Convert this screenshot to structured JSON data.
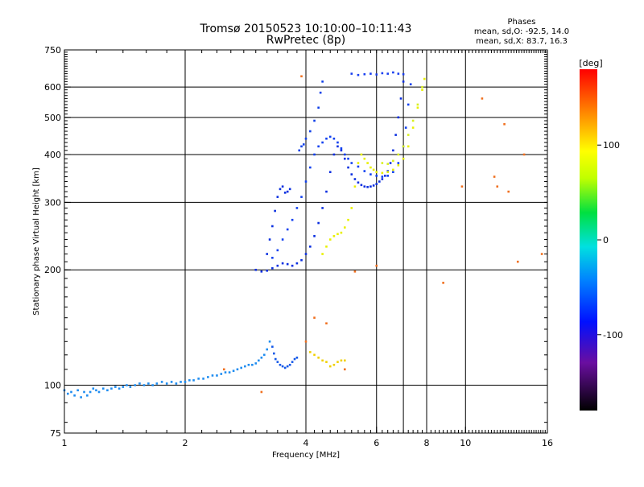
{
  "chart_data": {
    "type": "scatter",
    "title": "Tromsø 20150523 10:10:00–10:11:43",
    "subtitle": "RwPretec (8p)",
    "phase_box": {
      "heading": "Phases",
      "line_o": "mean, sd,O: -92.5, 14.0",
      "line_x": "mean, sd,X: 83.7, 16.3"
    },
    "xlabel": "Frequency [MHz]",
    "ylabel": "Stationary phase Virtual Height [km]",
    "x_scale": "log",
    "y_scale": "log",
    "xlim": [
      1,
      16
    ],
    "ylim": [
      75,
      750
    ],
    "x_ticks": [
      1,
      2,
      4,
      6,
      8,
      10,
      16
    ],
    "x_tick_labels": [
      "1",
      "2",
      "4",
      "6",
      "8",
      "10",
      "16"
    ],
    "y_ticks": [
      75,
      100,
      200,
      300,
      400,
      500,
      600,
      750
    ],
    "y_tick_labels": [
      "75",
      "100",
      "200",
      "300",
      "400",
      "500",
      "600",
      "750"
    ],
    "major_grid_x": [
      2,
      4,
      6,
      7,
      8,
      10
    ],
    "major_grid_y": [
      100,
      200,
      300,
      400,
      500,
      600
    ],
    "grid": true,
    "colorbar": {
      "label": "[deg]",
      "range": [
        -180,
        180
      ],
      "ticks": [
        100,
        0,
        -100
      ],
      "tick_labels": [
        "100",
        "0",
        "-100"
      ]
    },
    "series": [
      {
        "points": [
          [
            1.0,
            97
          ],
          [
            1.02,
            95
          ],
          [
            1.04,
            96
          ],
          [
            1.06,
            94
          ],
          [
            1.08,
            97
          ],
          [
            1.1,
            93
          ],
          [
            1.12,
            96
          ],
          [
            1.14,
            94
          ],
          [
            1.16,
            96
          ],
          [
            1.18,
            98
          ],
          [
            1.2,
            97
          ],
          [
            1.22,
            96
          ],
          [
            1.25,
            98
          ],
          [
            1.28,
            97
          ],
          [
            1.31,
            98
          ],
          [
            1.34,
            99
          ],
          [
            1.37,
            98
          ],
          [
            1.4,
            99
          ],
          [
            1.43,
            100
          ],
          [
            1.46,
            99
          ],
          [
            1.5,
            100
          ],
          [
            1.54,
            101
          ],
          [
            1.58,
            100
          ],
          [
            1.62,
            101
          ],
          [
            1.66,
            100
          ],
          [
            1.7,
            101
          ],
          [
            1.75,
            102
          ],
          [
            1.8,
            101
          ],
          [
            1.85,
            102
          ],
          [
            1.9,
            101
          ],
          [
            1.95,
            102
          ],
          [
            2.0,
            102
          ],
          [
            2.05,
            103
          ],
          [
            2.1,
            103
          ],
          [
            2.16,
            104
          ],
          [
            2.22,
            104
          ],
          [
            2.28,
            105
          ],
          [
            2.34,
            106
          ],
          [
            2.4,
            106
          ],
          [
            2.46,
            107
          ],
          [
            2.52,
            108
          ],
          [
            2.58,
            108
          ],
          [
            2.64,
            109
          ],
          [
            2.7,
            110
          ],
          [
            2.76,
            111
          ],
          [
            2.82,
            112
          ],
          [
            2.88,
            113
          ],
          [
            2.94,
            113
          ],
          [
            3.0,
            114
          ],
          [
            3.05,
            116
          ],
          [
            3.1,
            118
          ],
          [
            3.15,
            120
          ],
          [
            3.2,
            124
          ],
          [
            3.25,
            130
          ]
        ]
      },
      {
        "points": [
          [
            3.3,
            126
          ],
          [
            3.33,
            121
          ],
          [
            3.36,
            117
          ],
          [
            3.4,
            115
          ],
          [
            3.45,
            113
          ],
          [
            3.5,
            112
          ],
          [
            3.55,
            111
          ],
          [
            3.6,
            112
          ],
          [
            3.65,
            113
          ],
          [
            3.7,
            115
          ],
          [
            3.75,
            117
          ],
          [
            3.8,
            118
          ]
        ]
      },
      {
        "points": [
          [
            4.1,
            122
          ],
          [
            4.2,
            120
          ],
          [
            4.3,
            118
          ],
          [
            4.4,
            116
          ],
          [
            4.5,
            115
          ],
          [
            4.6,
            112
          ],
          [
            4.7,
            113
          ],
          [
            4.8,
            115
          ],
          [
            4.9,
            116
          ],
          [
            5.0,
            116
          ]
        ]
      },
      {
        "points": [
          [
            3.0,
            200
          ],
          [
            3.1,
            198
          ],
          [
            3.2,
            199
          ],
          [
            3.3,
            202
          ],
          [
            3.4,
            205
          ],
          [
            3.5,
            208
          ],
          [
            3.6,
            207
          ],
          [
            3.7,
            205
          ],
          [
            3.8,
            208
          ],
          [
            3.9,
            212
          ],
          [
            4.0,
            220
          ],
          [
            4.1,
            230
          ],
          [
            4.2,
            245
          ],
          [
            4.3,
            265
          ],
          [
            4.4,
            290
          ],
          [
            4.5,
            320
          ],
          [
            4.6,
            360
          ],
          [
            4.7,
            400
          ],
          [
            4.8,
            420
          ],
          [
            4.9,
            410
          ],
          [
            5.0,
            390
          ],
          [
            5.1,
            370
          ],
          [
            5.2,
            355
          ],
          [
            5.3,
            345
          ],
          [
            5.4,
            338
          ],
          [
            5.5,
            333
          ],
          [
            5.6,
            330
          ],
          [
            5.7,
            329
          ],
          [
            5.8,
            330
          ],
          [
            5.9,
            332
          ],
          [
            6.0,
            335
          ],
          [
            6.1,
            340
          ],
          [
            6.2,
            345
          ],
          [
            6.3,
            352
          ],
          [
            6.4,
            362
          ],
          [
            6.5,
            380
          ],
          [
            6.6,
            410
          ],
          [
            6.7,
            450
          ],
          [
            6.8,
            500
          ],
          [
            6.9,
            560
          ],
          [
            7.0,
            620
          ]
        ]
      },
      {
        "points": [
          [
            3.3,
            215
          ],
          [
            3.4,
            225
          ],
          [
            3.5,
            240
          ],
          [
            3.6,
            255
          ],
          [
            3.7,
            270
          ],
          [
            3.8,
            290
          ],
          [
            3.9,
            310
          ],
          [
            4.0,
            340
          ],
          [
            4.1,
            370
          ],
          [
            4.2,
            400
          ],
          [
            4.3,
            420
          ],
          [
            4.4,
            430
          ],
          [
            4.5,
            440
          ],
          [
            4.6,
            445
          ],
          [
            4.7,
            440
          ],
          [
            4.8,
            430
          ],
          [
            4.9,
            415
          ],
          [
            5.0,
            400
          ],
          [
            5.1,
            390
          ],
          [
            5.2,
            380
          ],
          [
            5.4,
            372
          ],
          [
            5.6,
            362
          ],
          [
            5.8,
            355
          ],
          [
            6.0,
            352
          ],
          [
            6.2,
            350
          ],
          [
            6.4,
            352
          ],
          [
            6.6,
            360
          ],
          [
            6.8,
            380
          ],
          [
            7.0,
            420
          ],
          [
            7.1,
            470
          ],
          [
            7.2,
            540
          ],
          [
            7.3,
            610
          ]
        ]
      },
      {
        "points": [
          [
            3.2,
            220
          ],
          [
            3.25,
            240
          ],
          [
            3.3,
            260
          ],
          [
            3.35,
            285
          ],
          [
            3.4,
            310
          ],
          [
            3.45,
            325
          ],
          [
            3.5,
            330
          ],
          [
            3.55,
            318
          ],
          [
            3.6,
            320
          ],
          [
            3.65,
            325
          ]
        ]
      },
      {
        "points": [
          [
            3.85,
            410
          ],
          [
            3.9,
            420
          ],
          [
            3.95,
            425
          ],
          [
            4.0,
            440
          ],
          [
            4.1,
            460
          ],
          [
            4.2,
            490
          ],
          [
            4.3,
            530
          ],
          [
            4.35,
            580
          ],
          [
            4.4,
            620
          ]
        ]
      },
      {
        "points": [
          [
            5.2,
            650
          ],
          [
            5.4,
            645
          ],
          [
            5.6,
            648
          ],
          [
            5.8,
            650
          ],
          [
            6.0,
            647
          ],
          [
            6.2,
            652
          ],
          [
            6.4,
            650
          ],
          [
            6.6,
            655
          ],
          [
            6.8,
            650
          ],
          [
            7.0,
            648
          ]
        ]
      },
      {
        "points": [
          [
            4.4,
            220
          ],
          [
            4.5,
            230
          ],
          [
            4.6,
            240
          ],
          [
            4.7,
            245
          ],
          [
            4.8,
            248
          ],
          [
            4.9,
            250
          ],
          [
            5.0,
            258
          ],
          [
            5.1,
            270
          ],
          [
            5.2,
            290
          ],
          [
            5.3,
            330
          ],
          [
            5.4,
            380
          ],
          [
            5.5,
            400
          ],
          [
            5.6,
            390
          ],
          [
            5.7,
            380
          ],
          [
            5.8,
            370
          ],
          [
            5.9,
            365
          ],
          [
            6.0,
            360
          ],
          [
            6.2,
            358
          ],
          [
            6.4,
            360
          ],
          [
            6.6,
            365
          ],
          [
            6.8,
            375
          ],
          [
            7.0,
            390
          ],
          [
            7.2,
            420
          ],
          [
            7.4,
            470
          ],
          [
            7.6,
            530
          ],
          [
            7.8,
            590
          ],
          [
            7.9,
            630
          ]
        ]
      },
      {
        "points": [
          [
            6.2,
            380
          ],
          [
            6.4,
            378
          ],
          [
            6.6,
            385
          ],
          [
            6.8,
            400
          ],
          [
            7.0,
            420
          ],
          [
            7.2,
            450
          ],
          [
            7.4,
            490
          ],
          [
            7.6,
            540
          ],
          [
            7.8,
            600
          ]
        ]
      },
      {
        "points": [
          [
            4.0,
            130
          ],
          [
            4.2,
            150
          ],
          [
            4.5,
            145
          ],
          [
            5.0,
            110
          ],
          [
            5.3,
            198
          ],
          [
            6.0,
            205
          ],
          [
            8.8,
            185
          ],
          [
            9.8,
            330
          ],
          [
            11.0,
            560
          ],
          [
            11.8,
            350
          ],
          [
            12.0,
            330
          ],
          [
            12.5,
            480
          ],
          [
            12.8,
            320
          ],
          [
            13.5,
            210
          ],
          [
            14.0,
            400
          ],
          [
            15.5,
            220
          ],
          [
            3.9,
            640
          ],
          [
            2.5,
            110
          ],
          [
            3.1,
            96
          ]
        ]
      }
    ]
  }
}
